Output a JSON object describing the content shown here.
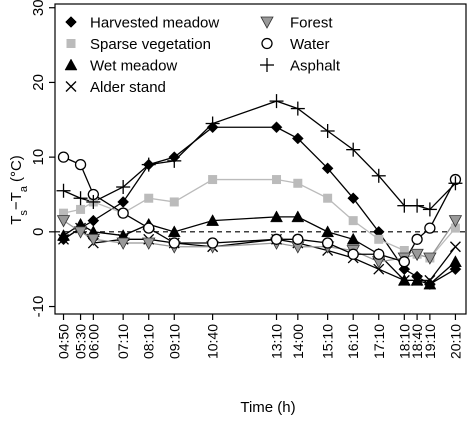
{
  "chart_data": {
    "type": "line",
    "xlabel": "Time (h)",
    "ylabel_main": "T",
    "ylabel_sub1": "s",
    "ylabel_mid": "−T",
    "ylabel_sub2": "a",
    "ylabel_unit": "(°C)",
    "yticks": [
      -10,
      0,
      10,
      20,
      30
    ],
    "ylim": [
      -11,
      30.5
    ],
    "xlim": [
      4.5,
      20.58
    ],
    "x_tick_hours": [
      4.8333,
      5.5,
      6.0,
      7.1667,
      8.1667,
      9.1667,
      10.6667,
      13.1667,
      14.0,
      15.1667,
      16.1667,
      17.1667,
      18.1667,
      18.6667,
      19.1667,
      20.1667
    ],
    "x_tick_labels": [
      "04:50",
      "05:30",
      "06:00",
      "07:10",
      "08:10",
      "09:10",
      "10:40",
      "13:10",
      "14:00",
      "15:10",
      "16:10",
      "17:10",
      "18:10",
      "18:40",
      "19:10",
      "20:10"
    ],
    "zero_line": 0,
    "series": [
      {
        "name": "Harvested meadow",
        "marker": "diamond",
        "color": "#000000",
        "x": [
          4.8333,
          5.5,
          6.0,
          7.1667,
          8.1667,
          9.1667,
          10.6667,
          13.1667,
          14.0,
          15.1667,
          16.1667,
          17.1667,
          18.1667,
          18.6667,
          19.1667,
          20.1667
        ],
        "y": [
          -1,
          0.5,
          1.5,
          4,
          9,
          10,
          14,
          14,
          12.5,
          8.5,
          4.5,
          0,
          -5,
          -6,
          -7,
          -5
        ]
      },
      {
        "name": "Sparse vegetation",
        "marker": "square",
        "color": "#bbbbbb",
        "x": [
          4.8333,
          5.5,
          6.0,
          7.1667,
          8.1667,
          9.1667,
          10.6667,
          13.1667,
          14.0,
          15.1667,
          16.1667,
          17.1667,
          18.1667,
          18.6667,
          19.1667,
          20.1667
        ],
        "y": [
          2.5,
          3,
          4,
          2.5,
          4.5,
          4,
          7,
          7,
          6.5,
          4.5,
          1.5,
          -1,
          -2.5,
          -3,
          -3.5,
          0.5
        ]
      },
      {
        "name": "Wet meadow",
        "marker": "triangle",
        "color": "#000000",
        "x": [
          4.8333,
          5.5,
          6.0,
          7.1667,
          8.1667,
          9.1667,
          10.6667,
          13.1667,
          14.0,
          15.1667,
          16.1667,
          17.1667,
          18.1667,
          18.6667,
          19.1667,
          20.1667
        ],
        "y": [
          -0.5,
          1,
          0,
          -0.5,
          1,
          0,
          1.5,
          2,
          2,
          0,
          -1,
          -3,
          -6.5,
          -6.5,
          -7,
          -4
        ]
      },
      {
        "name": "Alder stand",
        "marker": "x",
        "color": "#000000",
        "x": [
          4.8333,
          5.5,
          6.0,
          7.1667,
          8.1667,
          9.1667,
          10.6667,
          13.1667,
          14.0,
          15.1667,
          16.1667,
          17.1667,
          18.1667,
          18.6667,
          19.1667,
          20.1667
        ],
        "y": [
          -1,
          0.5,
          -1.5,
          -1,
          -1,
          -1.5,
          -2,
          -1,
          -1.5,
          -2.5,
          -3.5,
          -5,
          -6.5,
          -6.5,
          -6.5,
          -2
        ]
      },
      {
        "name": "Forest",
        "marker": "triangle-down",
        "color": "#999999",
        "x": [
          4.8333,
          5.5,
          6.0,
          7.1667,
          8.1667,
          9.1667,
          10.6667,
          13.1667,
          14.0,
          15.1667,
          16.1667,
          17.1667,
          18.1667,
          18.6667,
          19.1667,
          20.1667
        ],
        "y": [
          1.5,
          0,
          -1,
          -1.5,
          -1.5,
          -2,
          -2,
          -1.5,
          -2,
          -2,
          -2.5,
          -4,
          -3.5,
          -3,
          -3.5,
          1.5
        ]
      },
      {
        "name": "Water",
        "marker": "circle",
        "color": "#000000",
        "x": [
          4.8333,
          5.5,
          6.0,
          7.1667,
          8.1667,
          9.1667,
          10.6667,
          13.1667,
          14.0,
          15.1667,
          16.1667,
          17.1667,
          18.1667,
          18.6667,
          19.1667,
          20.1667
        ],
        "y": [
          10,
          9,
          5,
          2.5,
          0.5,
          -1.5,
          -1.5,
          -1,
          -1,
          -1.5,
          -3,
          -3,
          -4,
          -1,
          0.5,
          7
        ]
      },
      {
        "name": "Asphalt",
        "marker": "plus",
        "color": "#000000",
        "x": [
          4.8333,
          5.5,
          6.0,
          7.1667,
          8.1667,
          9.1667,
          10.6667,
          13.1667,
          14.0,
          15.1667,
          16.1667,
          17.1667,
          18.1667,
          18.6667,
          19.1667,
          20.1667
        ],
        "y": [
          5.5,
          4.5,
          4,
          6,
          9,
          9.5,
          14.5,
          17.5,
          16.5,
          13.5,
          11,
          7.5,
          3.5,
          3.5,
          3,
          6.5
        ]
      }
    ],
    "legend": {
      "placement": "top-left",
      "left_column": [
        "Harvested meadow",
        "Sparse vegetation",
        "Wet meadow",
        "Alder stand"
      ],
      "right_column": [
        "Forest",
        "Water",
        "Asphalt"
      ]
    }
  }
}
